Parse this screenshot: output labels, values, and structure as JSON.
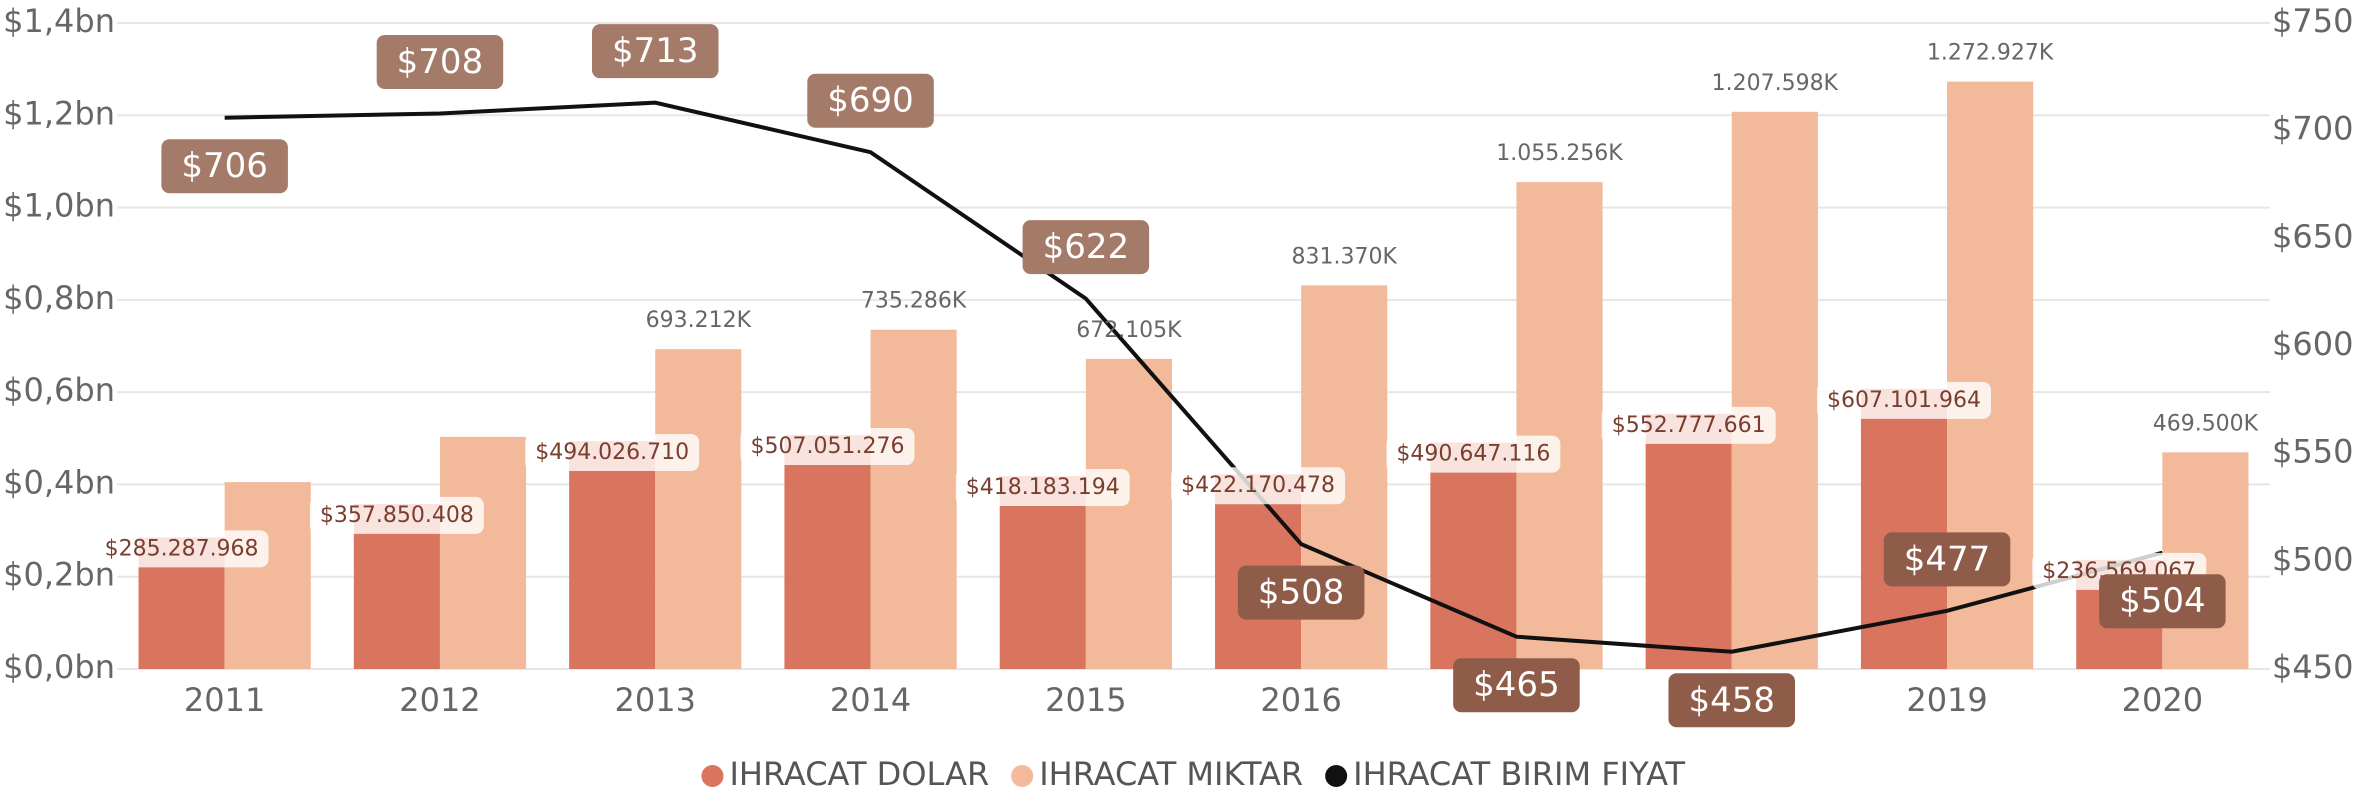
{
  "chart_data": {
    "type": "bar",
    "categories": [
      "2011",
      "2012",
      "2013",
      "2014",
      "2015",
      "2016",
      "2017",
      "2018",
      "2019",
      "2020"
    ],
    "series": [
      {
        "name": "IHRACAT DOLAR",
        "color": "#d9745f",
        "values": [
          285287968,
          357850408,
          494026710,
          507051276,
          418183194,
          422170478,
          490647116,
          552777661,
          607101964,
          236569067
        ],
        "value_labels": [
          "$285.287.968",
          "$357.850.408",
          "$494.026.710",
          "$507.051.276",
          "$418.183.194",
          "$422.170.478",
          "$490.647.116",
          "$552.777.661",
          "$607.101.964",
          "$236.569.067"
        ]
      },
      {
        "name": "IHRACAT MIKTAR",
        "color": "#f2b99a",
        "values": [
          405000000,
          503000000,
          693212000,
          735286000,
          672105000,
          831370000,
          1055256000,
          1207598000,
          1272927000,
          469500000
        ],
        "value_labels": [
          null,
          null,
          "693.212K",
          "735.286K",
          "672.105K",
          "831.370K",
          "1.055.256K",
          "1.207.598K",
          "1.272.927K",
          "469.500K"
        ]
      },
      {
        "name": "IHRACAT BIRIM FIYAT",
        "color": "#111111",
        "type": "line",
        "axis": "y2",
        "values": [
          706,
          708,
          713,
          690,
          622,
          508,
          465,
          458,
          477,
          504
        ],
        "value_labels": [
          "$706",
          "$708",
          "$713",
          "$690",
          "$622",
          "$508",
          "$465",
          "$458",
          "$477",
          "$504"
        ]
      }
    ],
    "ylim": [
      0,
      1400000000
    ],
    "yticks": [
      {
        "value": 0,
        "label": "$0,0bn"
      },
      {
        "value": 200000000,
        "label": "$0,2bn"
      },
      {
        "value": 400000000,
        "label": "$0,4bn"
      },
      {
        "value": 600000000,
        "label": "$0,6bn"
      },
      {
        "value": 800000000,
        "label": "$0,8bn"
      },
      {
        "value": 1000000000,
        "label": "$1,0bn"
      },
      {
        "value": 1200000000,
        "label": "$1,2bn"
      },
      {
        "value": 1400000000,
        "label": "$1,4bn"
      }
    ],
    "y2lim": [
      450,
      750
    ],
    "y2ticks": [
      {
        "value": 450,
        "label": "$450"
      },
      {
        "value": 500,
        "label": "$500"
      },
      {
        "value": 550,
        "label": "$550"
      },
      {
        "value": 600,
        "label": "$600"
      },
      {
        "value": 650,
        "label": "$650"
      },
      {
        "value": 700,
        "label": "$700"
      },
      {
        "value": 750,
        "label": "$750"
      }
    ],
    "grid": true,
    "legend": "bottom"
  }
}
